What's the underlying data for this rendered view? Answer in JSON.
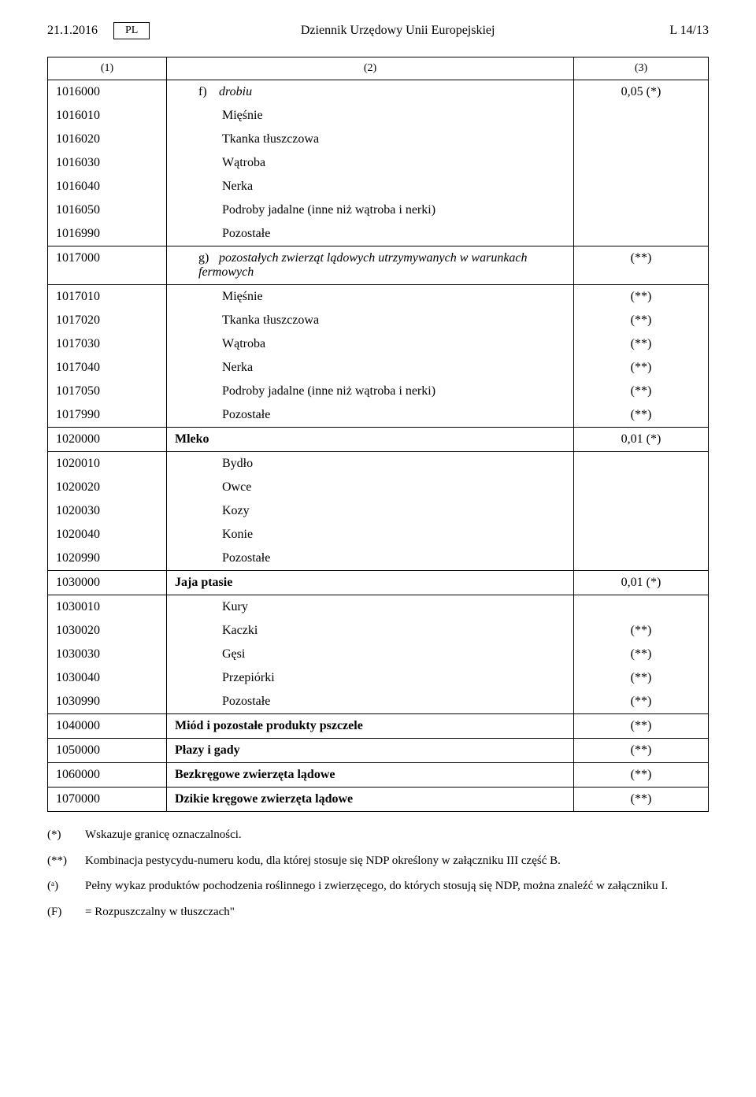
{
  "header": {
    "date": "21.1.2016",
    "lang_badge": "PL",
    "journal_title": "Dziennik Urzędowy Unii Europejskiej",
    "page_ref": "L 14/13"
  },
  "column_headers": {
    "c1": "(1)",
    "c2": "(2)",
    "c3": "(3)"
  },
  "rows": [
    {
      "code": "1016000",
      "prefix": "f)",
      "desc": "drobiu",
      "val": "0,05 (*)",
      "style": "italic",
      "indent": 1,
      "group_top": true
    },
    {
      "code": "1016010",
      "desc": "Mięśnie",
      "indent": 2
    },
    {
      "code": "1016020",
      "desc": "Tkanka tłuszczowa",
      "indent": 2
    },
    {
      "code": "1016030",
      "desc": "Wątroba",
      "indent": 2
    },
    {
      "code": "1016040",
      "desc": "Nerka",
      "indent": 2
    },
    {
      "code": "1016050",
      "desc": "Podroby jadalne (inne niż wątroba i nerki)",
      "indent": 2
    },
    {
      "code": "1016990",
      "desc": "Pozostałe",
      "indent": 2,
      "group_bottom": true
    },
    {
      "code": "1017000",
      "prefix": "g)",
      "desc": "pozostałych zwierząt lądowych utrzymywanych w warunkach fermowych",
      "val": "(**)",
      "style": "italic",
      "indent": 1,
      "group_top": true,
      "group_bottom": true
    },
    {
      "code": "1017010",
      "desc": "Mięśnie",
      "val": "(**)",
      "indent": 2,
      "group_top": true
    },
    {
      "code": "1017020",
      "desc": "Tkanka tłuszczowa",
      "val": "(**)",
      "indent": 2
    },
    {
      "code": "1017030",
      "desc": "Wątroba",
      "val": "(**)",
      "indent": 2
    },
    {
      "code": "1017040",
      "desc": "Nerka",
      "val": "(**)",
      "indent": 2
    },
    {
      "code": "1017050",
      "desc": "Podroby jadalne (inne niż wątroba i nerki)",
      "val": "(**)",
      "indent": 2
    },
    {
      "code": "1017990",
      "desc": "Pozostałe",
      "val": "(**)",
      "indent": 2,
      "group_bottom": true
    },
    {
      "code": "1020000",
      "desc": "Mleko",
      "val": "0,01 (*)",
      "style": "bold",
      "indent": 0,
      "group_top": true,
      "group_bottom": true
    },
    {
      "code": "1020010",
      "desc": "Bydło",
      "indent": 2,
      "group_top": true
    },
    {
      "code": "1020020",
      "desc": "Owce",
      "indent": 2
    },
    {
      "code": "1020030",
      "desc": "Kozy",
      "indent": 2
    },
    {
      "code": "1020040",
      "desc": "Konie",
      "indent": 2
    },
    {
      "code": "1020990",
      "desc": "Pozostałe",
      "indent": 2,
      "group_bottom": true
    },
    {
      "code": "1030000",
      "desc": "Jaja ptasie",
      "val": "0,01 (*)",
      "style": "bold",
      "indent": 0,
      "group_top": true,
      "group_bottom": true
    },
    {
      "code": "1030010",
      "desc": "Kury",
      "indent": 2,
      "group_top": true
    },
    {
      "code": "1030020",
      "desc": "Kaczki",
      "val": "(**)",
      "indent": 2
    },
    {
      "code": "1030030",
      "desc": "Gęsi",
      "val": "(**)",
      "indent": 2
    },
    {
      "code": "1030040",
      "desc": "Przepiórki",
      "val": "(**)",
      "indent": 2
    },
    {
      "code": "1030990",
      "desc": "Pozostałe",
      "val": "(**)",
      "indent": 2,
      "group_bottom": true
    },
    {
      "code": "1040000",
      "desc": "Miód i pozostałe produkty pszczele",
      "val": "(**)",
      "style": "bold",
      "indent": 0,
      "group_top": true,
      "group_bottom": true
    },
    {
      "code": "1050000",
      "desc": "Płazy i gady",
      "val": "(**)",
      "style": "bold",
      "indent": 0,
      "group_top": true,
      "group_bottom": true
    },
    {
      "code": "1060000",
      "desc": "Bezkręgowe zwierzęta lądowe",
      "val": "(**)",
      "style": "bold",
      "indent": 0,
      "group_top": true,
      "group_bottom": true
    },
    {
      "code": "1070000",
      "desc": "Dzikie kręgowe zwierzęta lądowe",
      "val": "(**)",
      "style": "bold",
      "indent": 0,
      "group_top": true,
      "group_bottom": true
    }
  ],
  "footnotes": [
    {
      "key": "(*)",
      "text": "Wskazuje granicę oznaczalności."
    },
    {
      "key": "(**)",
      "text": "Kombinacja pestycydu-numeru kodu, dla której stosuje się NDP określony w załączniku III część B."
    },
    {
      "key": "(ᵃ)",
      "text": "Pełny wykaz produktów pochodzenia roślinnego i zwierzęcego, do których stosują się NDP, można znaleźć w załączniku I."
    },
    {
      "key": "(F)",
      "text": "= Rozpuszczalny w tłuszczach\""
    }
  ]
}
